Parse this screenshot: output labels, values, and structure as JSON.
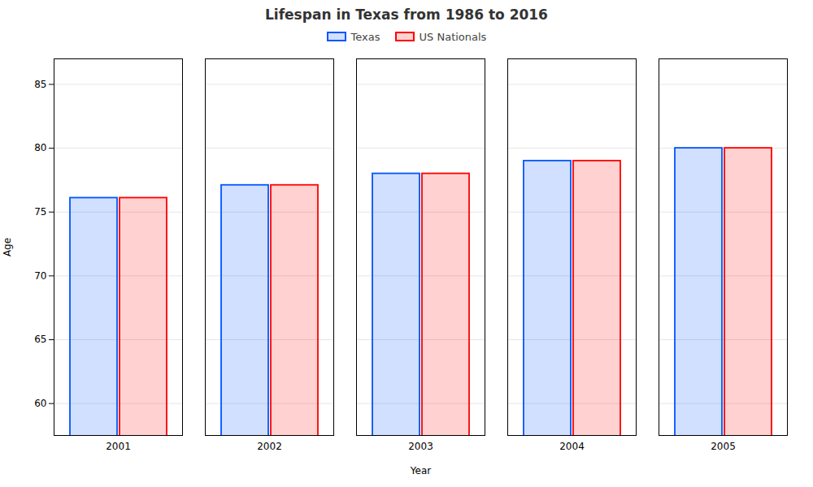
{
  "chart_data": {
    "type": "bar",
    "title": "Lifespan in Texas from 1986 to 2016",
    "xlabel": "Year",
    "ylabel": "Age",
    "categories": [
      "2001",
      "2002",
      "2003",
      "2004",
      "2005"
    ],
    "series": [
      {
        "name": "Texas",
        "color": "#0055ff",
        "values": [
          76.1,
          77.1,
          78.0,
          79.0,
          80.0
        ]
      },
      {
        "name": "US Nationals",
        "color": "#ff0000",
        "values": [
          76.1,
          77.1,
          78.0,
          79.0,
          80.0
        ]
      }
    ],
    "ylim": [
      57.5,
      87
    ],
    "yticks": [
      60,
      65,
      70,
      75,
      80,
      85
    ],
    "grid": true,
    "legend": "top"
  }
}
